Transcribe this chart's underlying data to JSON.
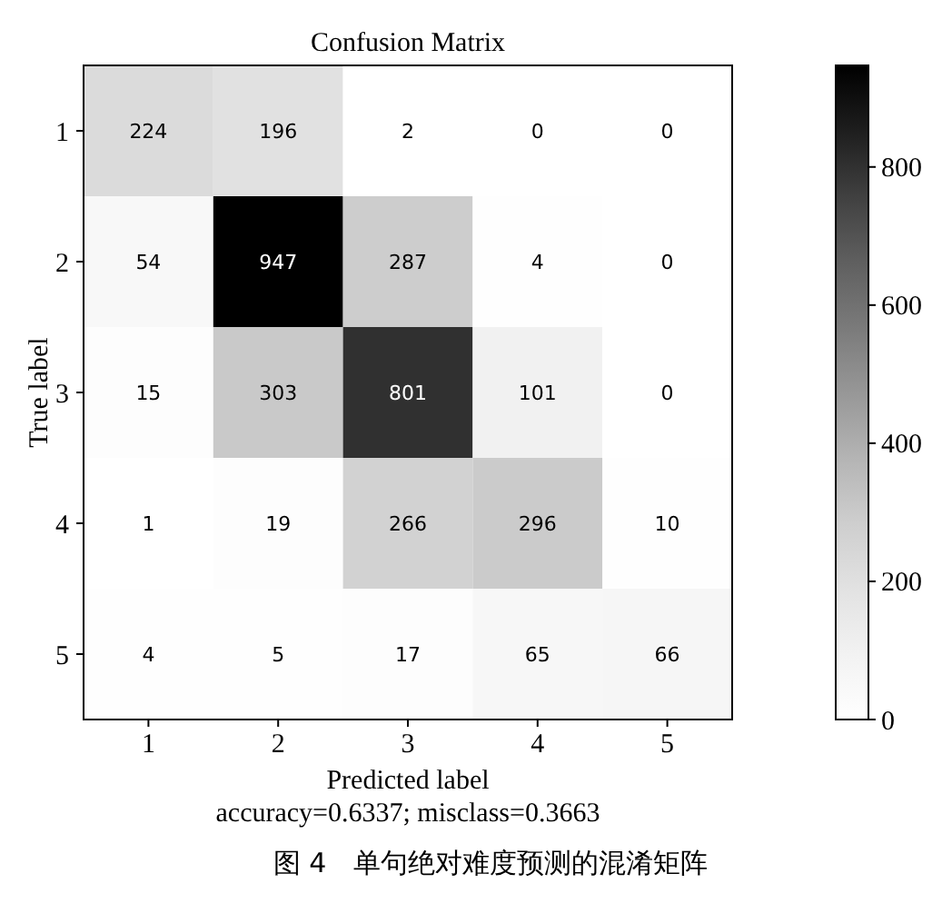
{
  "chart_data": {
    "type": "heatmap",
    "title": "Confusion Matrix",
    "xlabel": "Predicted label",
    "ylabel": "True label",
    "categories": [
      "1",
      "2",
      "3",
      "4",
      "5"
    ],
    "y_categories": [
      "1",
      "2",
      "3",
      "4",
      "5"
    ],
    "cells": [
      [
        224,
        196,
        2,
        0,
        0
      ],
      [
        54,
        947,
        287,
        4,
        0
      ],
      [
        15,
        303,
        801,
        101,
        0
      ],
      [
        1,
        19,
        266,
        296,
        10
      ],
      [
        4,
        5,
        17,
        65,
        66
      ]
    ],
    "data_labels": true,
    "clim": [
      0,
      947
    ],
    "cticks": [
      0,
      200,
      400,
      600,
      800
    ],
    "annotations": [
      "accuracy=0.6337; misclass=0.3663",
      "图 4　单句绝对难度预测的混淆矩阵"
    ]
  }
}
